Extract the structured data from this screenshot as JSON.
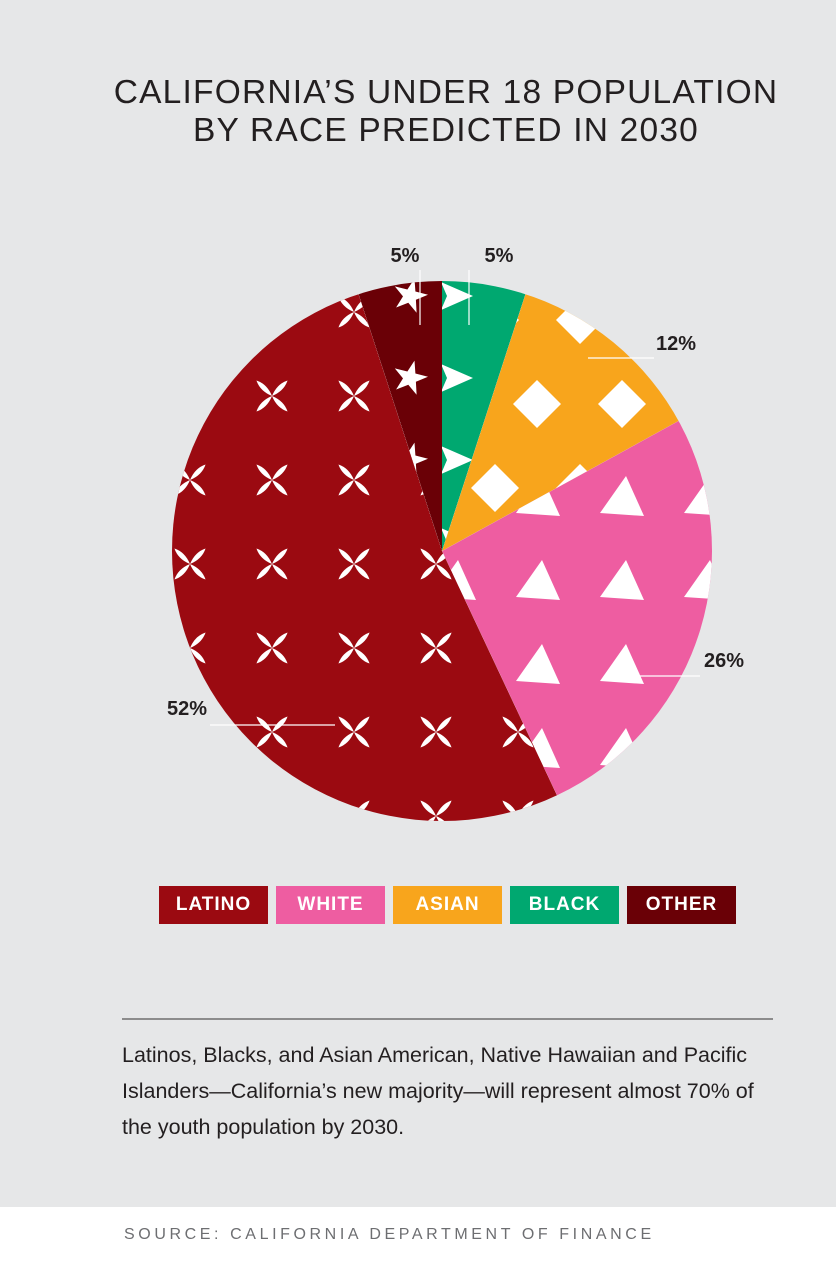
{
  "chart_data": {
    "type": "pie",
    "title_lines": [
      "CALIFORNIA’S UNDER 18 POPULATION",
      "BY RACE PREDICTED IN 2030"
    ],
    "slices": [
      {
        "name": "BLACK",
        "value": 5,
        "label": "5%",
        "color": "#00a870",
        "pattern": "arrow"
      },
      {
        "name": "ASIAN",
        "value": 12,
        "label": "12%",
        "color": "#f8a51c",
        "pattern": "diamond"
      },
      {
        "name": "WHITE",
        "value": 26,
        "label": "26%",
        "color": "#ee5da1",
        "pattern": "triangle"
      },
      {
        "name": "LATINO",
        "value": 52,
        "label": "52%",
        "color": "#9b0a11",
        "pattern": "petals"
      },
      {
        "name": "OTHER",
        "value": 5,
        "label": "5%",
        "color": "#6a0006",
        "pattern": "star"
      }
    ],
    "legend": [
      "LATINO",
      "WHITE",
      "ASIAN",
      "BLACK",
      "OTHER"
    ],
    "legend_placement": "bottom"
  },
  "colors": {
    "LATINO": "#9b0a11",
    "WHITE": "#ee5da1",
    "ASIAN": "#f8a51c",
    "BLACK": "#00a870",
    "OTHER": "#6a0006"
  },
  "caption": "Latinos, Blacks, and Asian American, Native Hawaiian and Pacific Islanders—California’s new majority—will represent almost 70% of the youth population by 2030.",
  "source": "SOURCE: CALIFORNIA DEPARTMENT OF FINANCE"
}
